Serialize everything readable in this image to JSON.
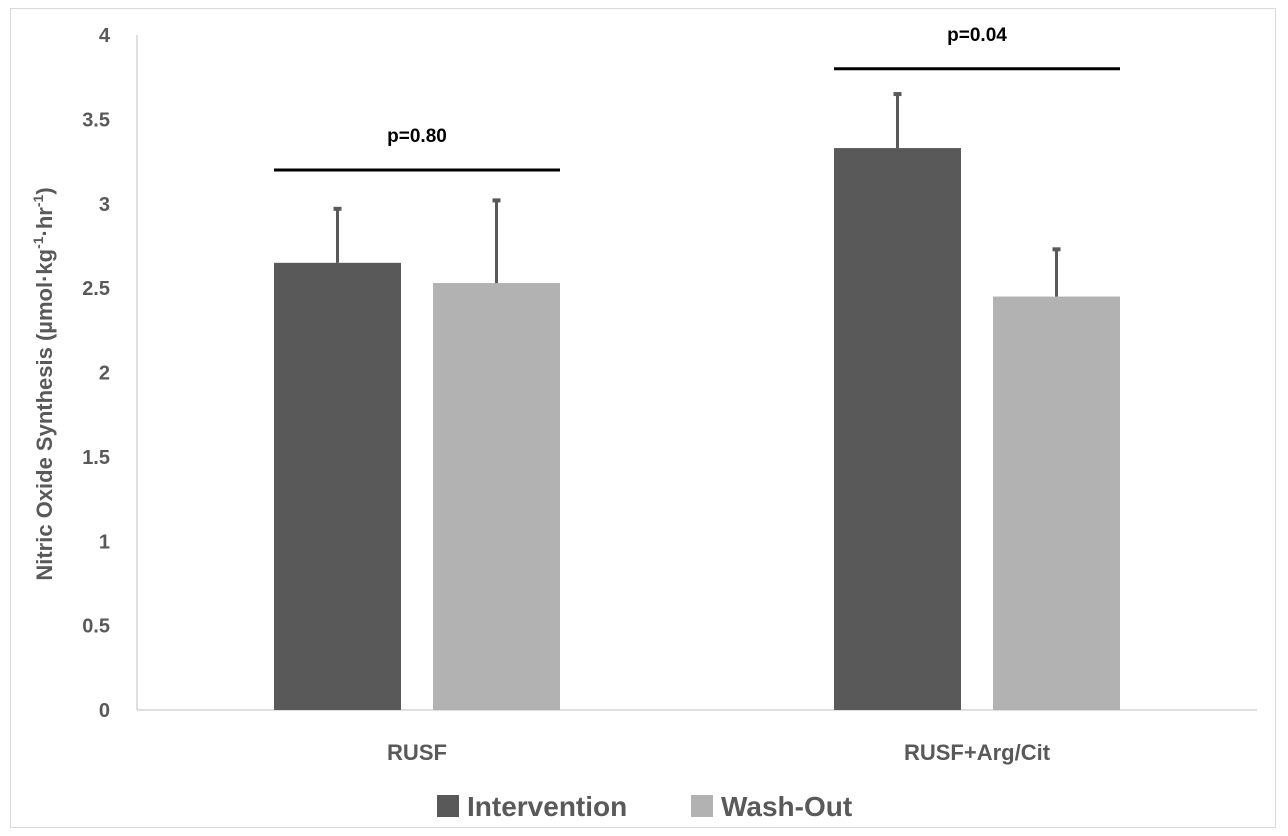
{
  "chart_data": {
    "type": "bar",
    "categories": [
      "RUSF",
      "RUSF+Arg/Cit"
    ],
    "series": [
      {
        "name": "Intervention",
        "values": [
          2.65,
          3.33
        ],
        "error": [
          0.32,
          0.32
        ],
        "color": "#595959"
      },
      {
        "name": "Wash-Out",
        "values": [
          2.53,
          2.45
        ],
        "error": [
          0.49,
          0.28
        ],
        "color": "#b2b2b2"
      }
    ],
    "title": "",
    "xlabel": "",
    "ylabel": {
      "main": "Nitric Oxide Synthesis (µmol·kg",
      "sup1": "-1",
      "mid": "·hr",
      "sup2": "-1",
      "end": ")"
    },
    "ylim": [
      0,
      4
    ],
    "yticks": [
      "0",
      "0.5",
      "1",
      "1.5",
      "2",
      "2.5",
      "3",
      "3.5",
      "4"
    ],
    "ytick_values": [
      0,
      0.5,
      1,
      1.5,
      2,
      2.5,
      3,
      3.5,
      4
    ],
    "grid": false,
    "legend_position": "bottom",
    "annotations": [
      {
        "category": 0,
        "label": "p=0.80",
        "y": 3.2
      },
      {
        "category": 1,
        "label": "p=0.04",
        "y": 3.8
      }
    ],
    "axis_color": "#595959",
    "text_color": "#595959"
  }
}
